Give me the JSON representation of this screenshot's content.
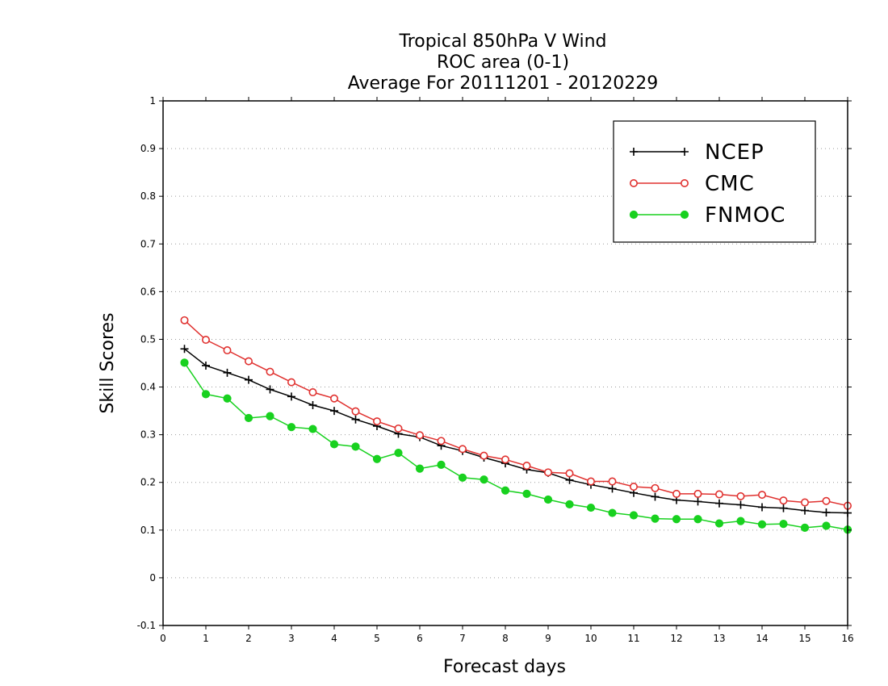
{
  "colors": {
    "NCEP": "#000000",
    "CMC": "#e0312f",
    "FNMOC": "#18d11f",
    "grid": "#9a9a9a"
  },
  "chart_data": {
    "type": "line",
    "title": [
      "Tropical 850hPa V Wind",
      "ROC area (0-1)",
      "Average For 20111201 - 20120229"
    ],
    "xlabel": "Forecast days",
    "ylabel": "Skill Scores",
    "xlim": [
      0,
      16
    ],
    "ylim": [
      -0.1,
      1
    ],
    "xticks": [
      0,
      1,
      2,
      3,
      4,
      5,
      6,
      7,
      8,
      9,
      10,
      11,
      12,
      13,
      14,
      15,
      16
    ],
    "xtick_labels": [
      "0",
      "1",
      "2",
      "3",
      "4",
      "5",
      "6",
      "7",
      "8",
      "9",
      "10",
      "11",
      "12",
      "13",
      "14",
      "15",
      "16"
    ],
    "yticks": [
      -0.1,
      0,
      0.1,
      0.2,
      0.3,
      0.4,
      0.5,
      0.6,
      0.7,
      0.8,
      0.9,
      1
    ],
    "ytick_labels": [
      "-0.1",
      "0",
      "0.1",
      "0.2",
      "0.3",
      "0.4",
      "0.5",
      "0.6",
      "0.7",
      "0.8",
      "0.9",
      "1"
    ],
    "grid": "horizontal dotted",
    "legend_position": "top-right",
    "x": [
      0.5,
      1,
      1.5,
      2,
      2.5,
      3,
      3.5,
      4,
      4.5,
      5,
      5.5,
      6,
      6.5,
      7,
      7.5,
      8,
      8.5,
      9,
      9.5,
      10,
      10.5,
      11,
      11.5,
      12,
      12.5,
      13,
      13.5,
      14,
      14.5,
      15,
      15.5,
      16
    ],
    "series": [
      {
        "name": "NCEP",
        "marker": "plus",
        "values": [
          0.48,
          0.445,
          0.43,
          0.415,
          0.395,
          0.38,
          0.362,
          0.35,
          0.332,
          0.318,
          0.302,
          0.295,
          0.277,
          0.266,
          0.252,
          0.24,
          0.227,
          0.22,
          0.205,
          0.195,
          0.187,
          0.178,
          0.17,
          0.163,
          0.16,
          0.156,
          0.153,
          0.148,
          0.146,
          0.141,
          0.137,
          0.136
        ]
      },
      {
        "name": "CMC",
        "marker": "open-circle",
        "values": [
          0.54,
          0.499,
          0.477,
          0.454,
          0.432,
          0.41,
          0.389,
          0.376,
          0.349,
          0.328,
          0.313,
          0.299,
          0.287,
          0.27,
          0.256,
          0.248,
          0.235,
          0.221,
          0.219,
          0.202,
          0.202,
          0.191,
          0.188,
          0.176,
          0.176,
          0.175,
          0.171,
          0.174,
          0.162,
          0.158,
          0.161,
          0.151
        ]
      },
      {
        "name": "FNMOC",
        "marker": "filled-circle",
        "values": [
          0.451,
          0.385,
          0.376,
          0.335,
          0.339,
          0.316,
          0.312,
          0.28,
          0.275,
          0.249,
          0.262,
          0.229,
          0.237,
          0.21,
          0.206,
          0.183,
          0.176,
          0.164,
          0.154,
          0.147,
          0.136,
          0.131,
          0.124,
          0.123,
          0.123,
          0.114,
          0.119,
          0.112,
          0.113,
          0.105,
          0.109,
          0.101
        ]
      }
    ]
  }
}
